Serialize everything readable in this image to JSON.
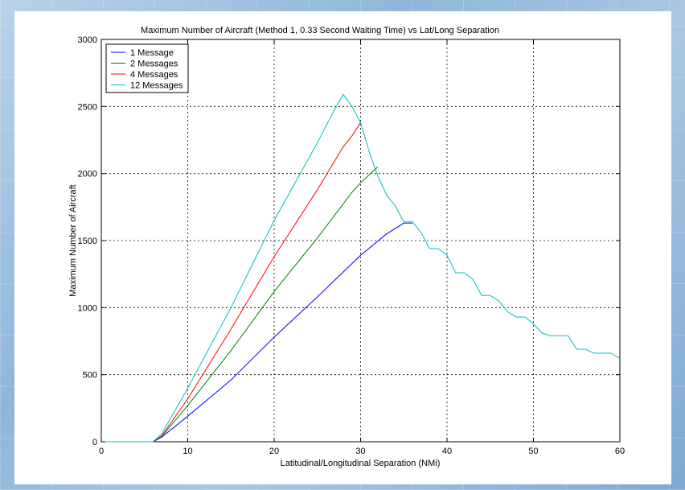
{
  "chart_data": {
    "type": "line",
    "title": "Maximum Number of Aircraft (Method 1, 0.33 Second Waiting Time) vs Lat/Long Separation",
    "xlabel": "Latitudinal/Longitudinal Separation (NMi)",
    "ylabel": "Maximum Number of Aircraft",
    "xlim": [
      0,
      60
    ],
    "ylim": [
      0,
      3000
    ],
    "xticks": [
      0,
      10,
      20,
      30,
      40,
      50,
      60
    ],
    "yticks": [
      0,
      500,
      1000,
      1500,
      2000,
      2500,
      3000
    ],
    "grid": true,
    "legend_position": "top-left",
    "series": [
      {
        "name": "1 Message",
        "color": "#0000ff",
        "x": [
          0,
          6,
          7,
          10,
          15,
          20,
          25,
          30,
          33,
          35,
          36
        ],
        "y": [
          0,
          0,
          35,
          190,
          460,
          780,
          1080,
          1390,
          1550,
          1630,
          1630
        ]
      },
      {
        "name": "2 Messages",
        "color": "#008000",
        "x": [
          0,
          6,
          7,
          10,
          15,
          20,
          25,
          29,
          30,
          31,
          32
        ],
        "y": [
          0,
          0,
          40,
          270,
          680,
          1120,
          1520,
          1860,
          1930,
          1990,
          2050
        ]
      },
      {
        "name": "4 Messages",
        "color": "#ff0000",
        "x": [
          0,
          6,
          7,
          10,
          15,
          20,
          25,
          28,
          29,
          30
        ],
        "y": [
          0,
          0,
          45,
          320,
          840,
          1380,
          1880,
          2200,
          2280,
          2380
        ]
      },
      {
        "name": "12 Messages",
        "color": "#00bfbf",
        "x": [
          0,
          6,
          7,
          10,
          15,
          20,
          25,
          27,
          28,
          29,
          30,
          31,
          32,
          33,
          34,
          35,
          36,
          37,
          38,
          39,
          40,
          41,
          42,
          43,
          44,
          45,
          46,
          47,
          48,
          49,
          50,
          51,
          52,
          53,
          54,
          55,
          56,
          57,
          58,
          59,
          60
        ],
        "y": [
          0,
          0,
          60,
          400,
          1000,
          1650,
          2230,
          2480,
          2590,
          2500,
          2380,
          2160,
          1980,
          1840,
          1760,
          1640,
          1640,
          1560,
          1440,
          1440,
          1390,
          1260,
          1260,
          1210,
          1090,
          1090,
          1050,
          970,
          930,
          930,
          880,
          810,
          790,
          790,
          790,
          690,
          690,
          660,
          660,
          660,
          620
        ]
      }
    ]
  }
}
